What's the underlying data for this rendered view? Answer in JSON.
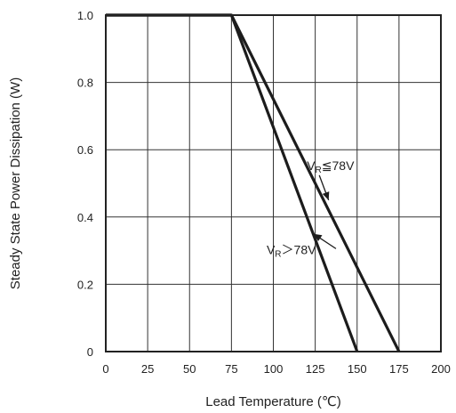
{
  "chart_data": {
    "type": "line",
    "xlabel": "Lead Temperature (℃)",
    "ylabel": "Steady State Power Dissipation (W)",
    "xlim": [
      0,
      200
    ],
    "ylim": [
      0,
      1.0
    ],
    "x_ticks": [
      0,
      25,
      50,
      75,
      100,
      125,
      150,
      175,
      200
    ],
    "x_tick_labels": [
      "0",
      "25",
      "50",
      "75",
      "100",
      "125",
      "150",
      "175",
      "200"
    ],
    "y_ticks": [
      0,
      0.2,
      0.4,
      0.6,
      0.8,
      1.0
    ],
    "y_tick_labels": [
      "0",
      "0.2",
      "0.4",
      "0.6",
      "0.8",
      "1.0"
    ],
    "grid": true,
    "series": [
      {
        "name": "V_R ≦ 78V",
        "label_main": "V",
        "label_sub": "R",
        "label_rest": "≦78V",
        "x": [
          0,
          75,
          175
        ],
        "y": [
          1.0,
          1.0,
          0
        ]
      },
      {
        "name": "V_R > 78V",
        "label_main": "V",
        "label_sub": "R",
        "label_rest": "＞78V",
        "x": [
          0,
          75,
          150
        ],
        "y": [
          1.0,
          1.0,
          0
        ]
      }
    ],
    "annotations": [
      {
        "series": 0,
        "text_x": 120,
        "text_y": 0.54,
        "arrow_to_x": 133,
        "arrow_to_y": 0.45
      },
      {
        "series": 1,
        "text_x": 96,
        "text_y": 0.29,
        "arrow_to_x": 124,
        "arrow_to_y": 0.35
      }
    ]
  }
}
